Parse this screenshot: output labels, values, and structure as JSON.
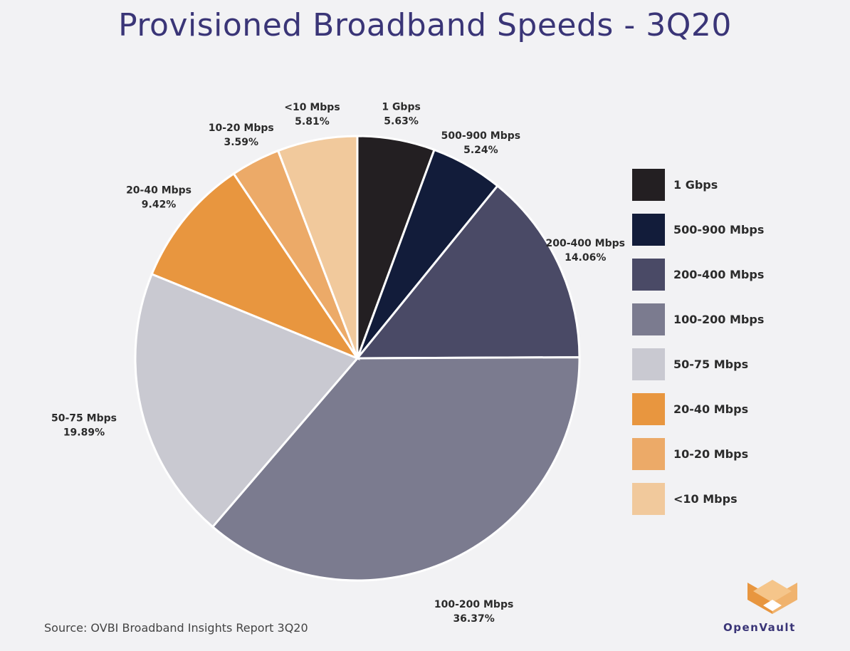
{
  "title": "Provisioned Broadband Speeds - 3Q20",
  "source": "Source: OVBI Broadband Insights Report 3Q20",
  "brand": "OpenVault",
  "chart_data": {
    "type": "pie",
    "title": "Provisioned Broadband Speeds - 3Q20",
    "legend_position": "right",
    "slices": [
      {
        "label": "1 Gbps",
        "value": 5.63,
        "value_label": "5.63%",
        "color": "#231f22"
      },
      {
        "label": "500-900 Mbps",
        "value": 5.24,
        "value_label": "5.24%",
        "color": "#121c3a"
      },
      {
        "label": "200-400 Mbps",
        "value": 14.06,
        "value_label": "14.06%",
        "color": "#4a4a66"
      },
      {
        "label": "100-200 Mbps",
        "value": 36.37,
        "value_label": "36.37%",
        "color": "#7b7b8f"
      },
      {
        "label": "50-75 Mbps",
        "value": 19.89,
        "value_label": "19.89%",
        "color": "#c9c9d1"
      },
      {
        "label": "20-40 Mbps",
        "value": 9.42,
        "value_label": "9.42%",
        "color": "#e8963f"
      },
      {
        "label": "10-20 Mbps",
        "value": 3.59,
        "value_label": "3.59%",
        "color": "#ecaa68"
      },
      {
        "label": "<10 Mbps",
        "value": 5.81,
        "value_label": "5.81%",
        "color": "#f1c99c"
      }
    ]
  }
}
